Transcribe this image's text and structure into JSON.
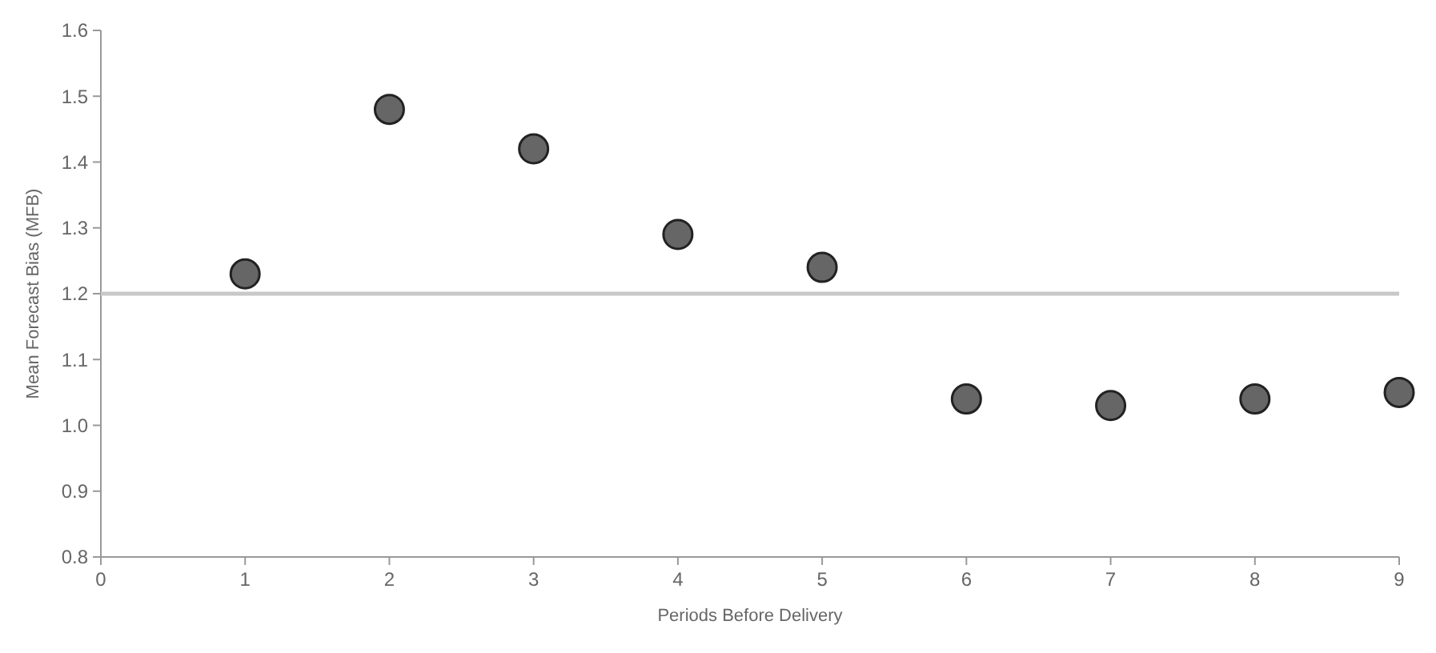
{
  "chart_data": {
    "type": "scatter",
    "xlabel": "Periods Before Delivery",
    "ylabel": "Mean Forecast Bias (MFB)",
    "x": [
      1,
      2,
      3,
      4,
      5,
      6,
      7,
      8,
      9
    ],
    "values": [
      1.23,
      1.48,
      1.42,
      1.29,
      1.24,
      1.04,
      1.03,
      1.04,
      1.05
    ],
    "color": "#666666",
    "marker": "circle",
    "xlim": [
      0,
      9
    ],
    "xticks": [
      0,
      1,
      2,
      3,
      4,
      5,
      6,
      7,
      8,
      9
    ],
    "ylim": [
      0.8,
      1.6
    ],
    "yticks": [
      {
        "value": 0.8,
        "label": "0.8"
      },
      {
        "value": 0.9,
        "label": "0.9"
      },
      {
        "value": 1.0,
        "label": "1.0"
      },
      {
        "value": 1.1,
        "label": "1.1"
      },
      {
        "value": 1.2,
        "label": "1.2"
      },
      {
        "value": 1.3,
        "label": "1.3"
      },
      {
        "value": 1.4,
        "label": "1.4"
      },
      {
        "value": 1.5,
        "label": "1.5"
      },
      {
        "value": 1.6,
        "label": "1.6"
      }
    ],
    "ref_lines": [
      {
        "axis": "y",
        "value": 1.2,
        "color": "#c8c8c8"
      }
    ],
    "grid": false
  }
}
